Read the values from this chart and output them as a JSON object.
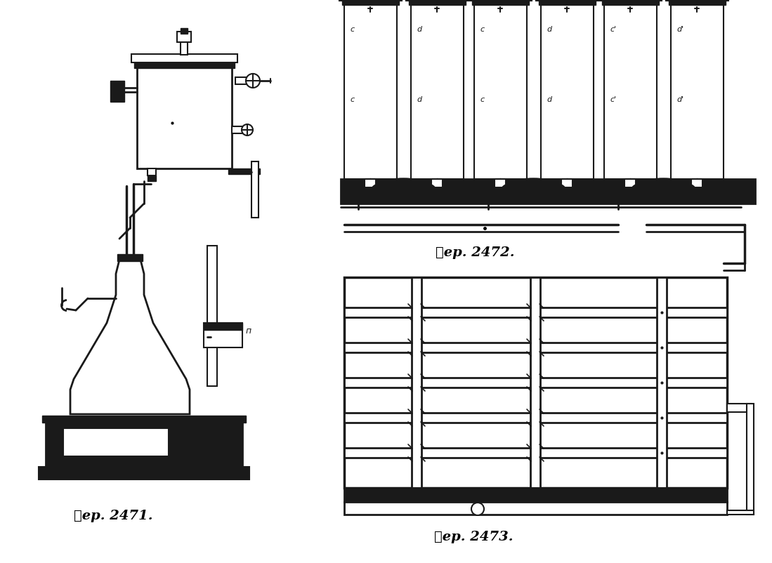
{
  "background_color": "#ffffff",
  "caption_2471": "䉾ер. 2471.",
  "caption_2472": "䉾ер. 2472.",
  "caption_2473": "䉾ер. 2473.",
  "fig_width": 10.99,
  "fig_height": 8.02,
  "line_color": "#000000",
  "dark_color": "#1a1a1a",
  "gray_color": "#555555"
}
